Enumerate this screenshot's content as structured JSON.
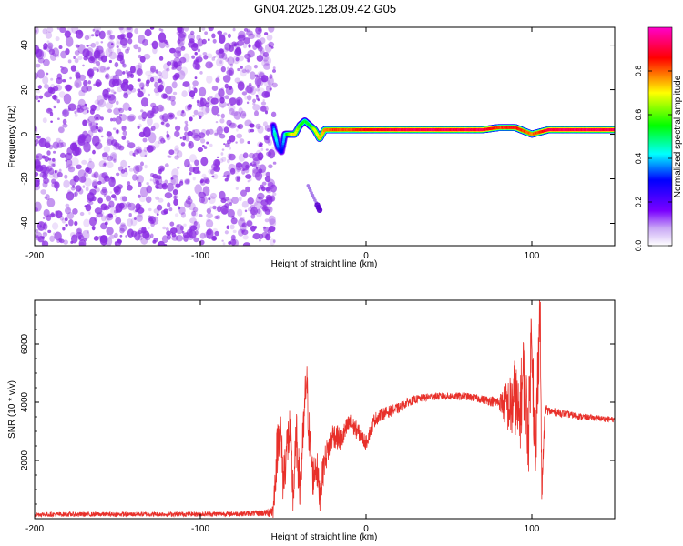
{
  "title": "GN04.2025.128.09.42.G05",
  "chart_data": [
    {
      "type": "heatmap",
      "xlabel": "Height of straight line (km)",
      "ylabel": "Frequency (Hz)",
      "xlim": [
        -200,
        150
      ],
      "ylim": [
        -50,
        48
      ],
      "xticks": [
        -200,
        -100,
        0,
        100
      ],
      "yticks": [
        -40,
        -20,
        0,
        20,
        40
      ],
      "colorbar": {
        "label": "Normalized spectral amplitude",
        "range": [
          0,
          1
        ],
        "ticks": [
          "0.0",
          "0.2",
          "0.4",
          "0.6",
          "0.8"
        ],
        "tick_values": [
          0,
          0.2,
          0.4,
          0.6,
          0.8
        ],
        "colormap": "rainbow",
        "colors": [
          "#ffffff",
          "#7a00ff",
          "#0000ff",
          "#00ffff",
          "#00ff00",
          "#ffff00",
          "#ff0000",
          "#ff00cc"
        ]
      },
      "noise_region": {
        "x_range": [
          -200,
          -55
        ],
        "y_range": [
          -50,
          48
        ],
        "color": "#8a2be2"
      },
      "signal_track": {
        "x": [
          -56,
          -55,
          -53,
          -51,
          -49,
          -47,
          -45,
          -43,
          -40,
          -37,
          -34,
          -31,
          -28,
          -25,
          -20,
          -10,
          0,
          20,
          50,
          70,
          80,
          90,
          100,
          110,
          130,
          150
        ],
        "y": [
          4,
          0,
          -6,
          -8,
          0,
          0,
          0,
          0,
          4,
          6,
          4,
          2,
          -2,
          2,
          2,
          2,
          2,
          2,
          2,
          2,
          3,
          3,
          0,
          2,
          2,
          2
        ],
        "amplitude": [
          0.3,
          0.5,
          0.35,
          0.3,
          0.45,
          0.6,
          0.7,
          0.75,
          0.6,
          0.55,
          0.55,
          0.7,
          0.75,
          0.8,
          0.85,
          0.85,
          0.9,
          0.95,
          0.95,
          0.95,
          0.85,
          0.9,
          0.8,
          0.95,
          0.95,
          0.95
        ]
      },
      "secondary_track": {
        "x": [
          -35,
          -28
        ],
        "y": [
          -23,
          -34
        ],
        "amplitude": 0.25
      }
    },
    {
      "type": "line",
      "xlabel": "Height of straight line (km)",
      "ylabel": "SNR (10 * v/v)",
      "xlim": [
        -200,
        150
      ],
      "ylim": [
        0,
        7500
      ],
      "xticks": [
        -200,
        -100,
        0,
        100
      ],
      "yticks": [
        2000,
        4000,
        6000
      ],
      "series": [
        {
          "color": "#e8302a",
          "x": [
            -200,
            -150,
            -100,
            -80,
            -70,
            -60,
            -56,
            -54,
            -52,
            -50,
            -48,
            -46,
            -44,
            -42,
            -40,
            -38,
            -36,
            -34,
            -32,
            -30,
            -28,
            -25,
            -20,
            -15,
            -10,
            -5,
            0,
            5,
            10,
            15,
            20,
            25,
            30,
            40,
            50,
            60,
            70,
            80,
            85,
            88,
            90,
            92,
            95,
            98,
            100,
            102,
            104,
            105,
            106,
            108,
            110,
            120,
            130,
            140,
            150
          ],
          "y": [
            150,
            150,
            160,
            170,
            180,
            200,
            300,
            2100,
            3400,
            1300,
            2400,
            3000,
            800,
            2800,
            1000,
            2700,
            4900,
            2500,
            1400,
            1900,
            800,
            2000,
            2900,
            2700,
            3300,
            3000,
            2600,
            3400,
            3600,
            3700,
            3800,
            4000,
            4100,
            4200,
            4200,
            4200,
            4100,
            4000,
            3900,
            3800,
            4300,
            3200,
            5000,
            2900,
            6800,
            1500,
            5800,
            7400,
            900,
            3800,
            3700,
            3600,
            3500,
            3450,
            3400
          ],
          "noise_amplitude": [
            80,
            80,
            80,
            90,
            90,
            120,
            300,
            900,
            900,
            900,
            900,
            900,
            900,
            900,
            900,
            900,
            900,
            900,
            700,
            700,
            600,
            500,
            450,
            400,
            350,
            300,
            250,
            250,
            220,
            200,
            180,
            150,
            140,
            130,
            130,
            130,
            140,
            200,
            900,
            1200,
            1400,
            1400,
            1500,
            1400,
            1500,
            1500,
            1500,
            1500,
            600,
            200,
            150,
            120,
            110,
            100,
            100
          ]
        }
      ]
    }
  ]
}
